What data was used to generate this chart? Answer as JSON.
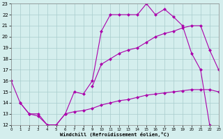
{
  "xlabel": "Windchill (Refroidissement éolien,°C)",
  "ylabel": "",
  "bg_color": "#d4eeed",
  "grid_color": "#a8cccc",
  "line_color": "#aa00aa",
  "xlim": [
    0,
    23
  ],
  "ylim": [
    12,
    23
  ],
  "xticks": [
    0,
    1,
    2,
    3,
    4,
    5,
    6,
    7,
    8,
    9,
    10,
    11,
    12,
    13,
    14,
    15,
    16,
    17,
    18,
    19,
    20,
    21,
    22,
    23
  ],
  "yticks": [
    12,
    13,
    14,
    15,
    16,
    17,
    18,
    19,
    20,
    21,
    22,
    23
  ],
  "line1_x": [
    0,
    1,
    2,
    3,
    4,
    5,
    6,
    7,
    8,
    9,
    10,
    11,
    12,
    13,
    14,
    15,
    16,
    17,
    18,
    19,
    20,
    21,
    22
  ],
  "line1_y": [
    16,
    14,
    13,
    13,
    12,
    12,
    13,
    15,
    14.8,
    16,
    20.5,
    22,
    22,
    22,
    22,
    23,
    22,
    22.5,
    21.8,
    21,
    18.5,
    17,
    12
  ],
  "line2_x": [
    9,
    10,
    11,
    12,
    13,
    14,
    15,
    16,
    17,
    18,
    19,
    20,
    21,
    22,
    23
  ],
  "line2_y": [
    15.5,
    17.5,
    18,
    18.5,
    18.8,
    19,
    19.5,
    20,
    20.3,
    20.5,
    20.8,
    21,
    21,
    18.8,
    17
  ],
  "line3_x": [
    1,
    2,
    3,
    4,
    5,
    6,
    7,
    8,
    9,
    10,
    11,
    12,
    13,
    14,
    15,
    16,
    17,
    18,
    19,
    20,
    21,
    22,
    23
  ],
  "line3_y": [
    14,
    13,
    12.8,
    12,
    12,
    13,
    13.2,
    13.3,
    13.5,
    13.8,
    14,
    14.2,
    14.3,
    14.5,
    14.7,
    14.8,
    14.9,
    15.0,
    15.1,
    15.2,
    15.2,
    15.2,
    15
  ]
}
